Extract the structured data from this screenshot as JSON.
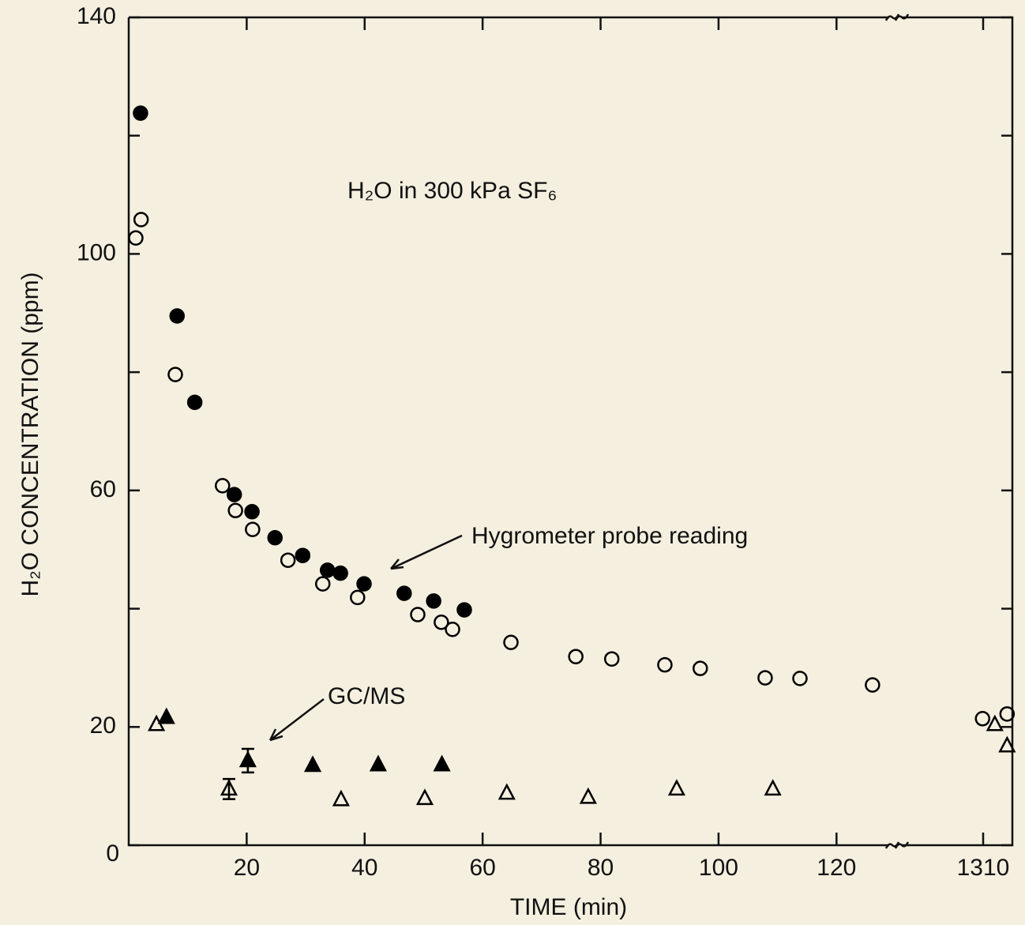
{
  "chart_data": {
    "type": "scatter",
    "title": "H₂O in 300 kPa SF₆",
    "x_label": "TIME (min)",
    "y_label": "H₂O CONCENTRATION (ppm)",
    "annotations": [
      "Hygrometer probe reading",
      "GC/MS"
    ],
    "xlim": [
      0,
      130
    ],
    "x2lim": [
      1295,
      1315
    ],
    "xticks": [
      20,
      40,
      60,
      80,
      100,
      120
    ],
    "x2ticks": [
      1310
    ],
    "ylim": [
      0,
      140
    ],
    "yticks": [
      0,
      20,
      60,
      100,
      140
    ],
    "yticks_minor": [
      40,
      80,
      120
    ],
    "series": [
      {
        "marker": "circle",
        "filled": true,
        "color": "#000000",
        "x": [
          2.0,
          8.2,
          11.2,
          17.9,
          20.9,
          24.8,
          29.5,
          33.7,
          35.9,
          39.9,
          46.7,
          51.7,
          56.9
        ],
        "values": [
          123.8,
          89.5,
          74.9,
          59.3,
          56.4,
          52.0,
          49.0,
          46.5,
          46.0,
          44.2,
          42.6,
          41.3,
          39.8
        ]
      },
      {
        "marker": "circle",
        "filled": false,
        "color": "#000000",
        "x": [
          1.2,
          2.1,
          7.9,
          15.9,
          18.1,
          21.0,
          27.0,
          32.9,
          38.8,
          49.0,
          53.0,
          54.9,
          64.8,
          75.8,
          81.9,
          90.9,
          96.9,
          107.9,
          113.8,
          126.1,
          1309.9,
          1314.1
        ],
        "values": [
          102.7,
          105.8,
          79.6,
          60.8,
          56.6,
          53.4,
          48.2,
          44.2,
          41.9,
          39.0,
          37.7,
          36.5,
          34.3,
          31.9,
          31.5,
          30.5,
          29.9,
          28.3,
          28.2,
          27.1,
          21.4,
          22.2
        ]
      },
      {
        "marker": "triangle",
        "filled": false,
        "color": "#000000",
        "x": [
          4.7,
          17.0,
          36.0,
          50.2,
          64.1,
          77.9,
          92.9,
          109.2,
          1312.0,
          1314.1
        ],
        "values": [
          20.4,
          9.5,
          7.7,
          7.9,
          8.8,
          8.1,
          9.5,
          9.5,
          20.4,
          16.8
        ],
        "errors": [
          null,
          1.7,
          null,
          null,
          null,
          null,
          null,
          null,
          null,
          null
        ]
      },
      {
        "marker": "triangle",
        "filled": true,
        "color": "#000000",
        "x": [
          6.4,
          20.2,
          31.2,
          42.3,
          53.1
        ],
        "values": [
          21.6,
          14.3,
          13.5,
          13.6,
          13.6
        ],
        "errors": [
          null,
          2.0,
          null,
          null,
          null
        ]
      }
    ]
  }
}
